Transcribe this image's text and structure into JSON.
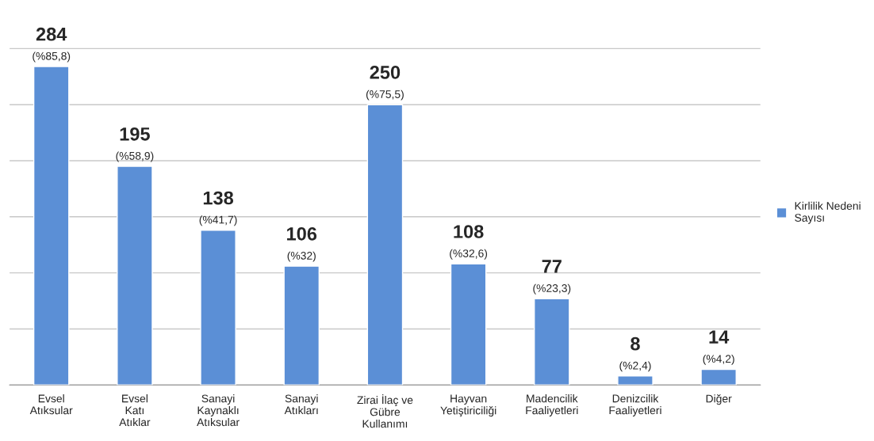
{
  "chart_data": {
    "type": "bar",
    "categories": [
      "Evsel\nAtıksular",
      "Evsel\nKatı\nAtıklar",
      "Sanayi\nKaynaklı\nAtıksular",
      "Sanayi\nAtıkları",
      "Zirai İlaç ve\nGübre\nKullanımı",
      "Hayvan\nYetiştiriciliği",
      "Madencilik\nFaaliyetleri",
      "Denizcilik\nFaaliyetleri",
      "Diğer"
    ],
    "series": [
      {
        "name": "Kirlilik Nedeni Sayısı",
        "color": "#5b8fd6",
        "values": [
          284,
          195,
          138,
          106,
          250,
          108,
          77,
          8,
          14
        ],
        "value_labels": [
          "284\n(%85,8)",
          "195\n(%58,9)",
          "138\n(%41,7)",
          "106\n(%32)",
          "250\n(%75,5)",
          "108\n(%32,6)",
          "77\n(%23,3)",
          "8\n(%2,4)",
          "14\n(%4,2)"
        ]
      }
    ],
    "tick_labels": "x",
    "grid": "y",
    "legend": "right"
  }
}
